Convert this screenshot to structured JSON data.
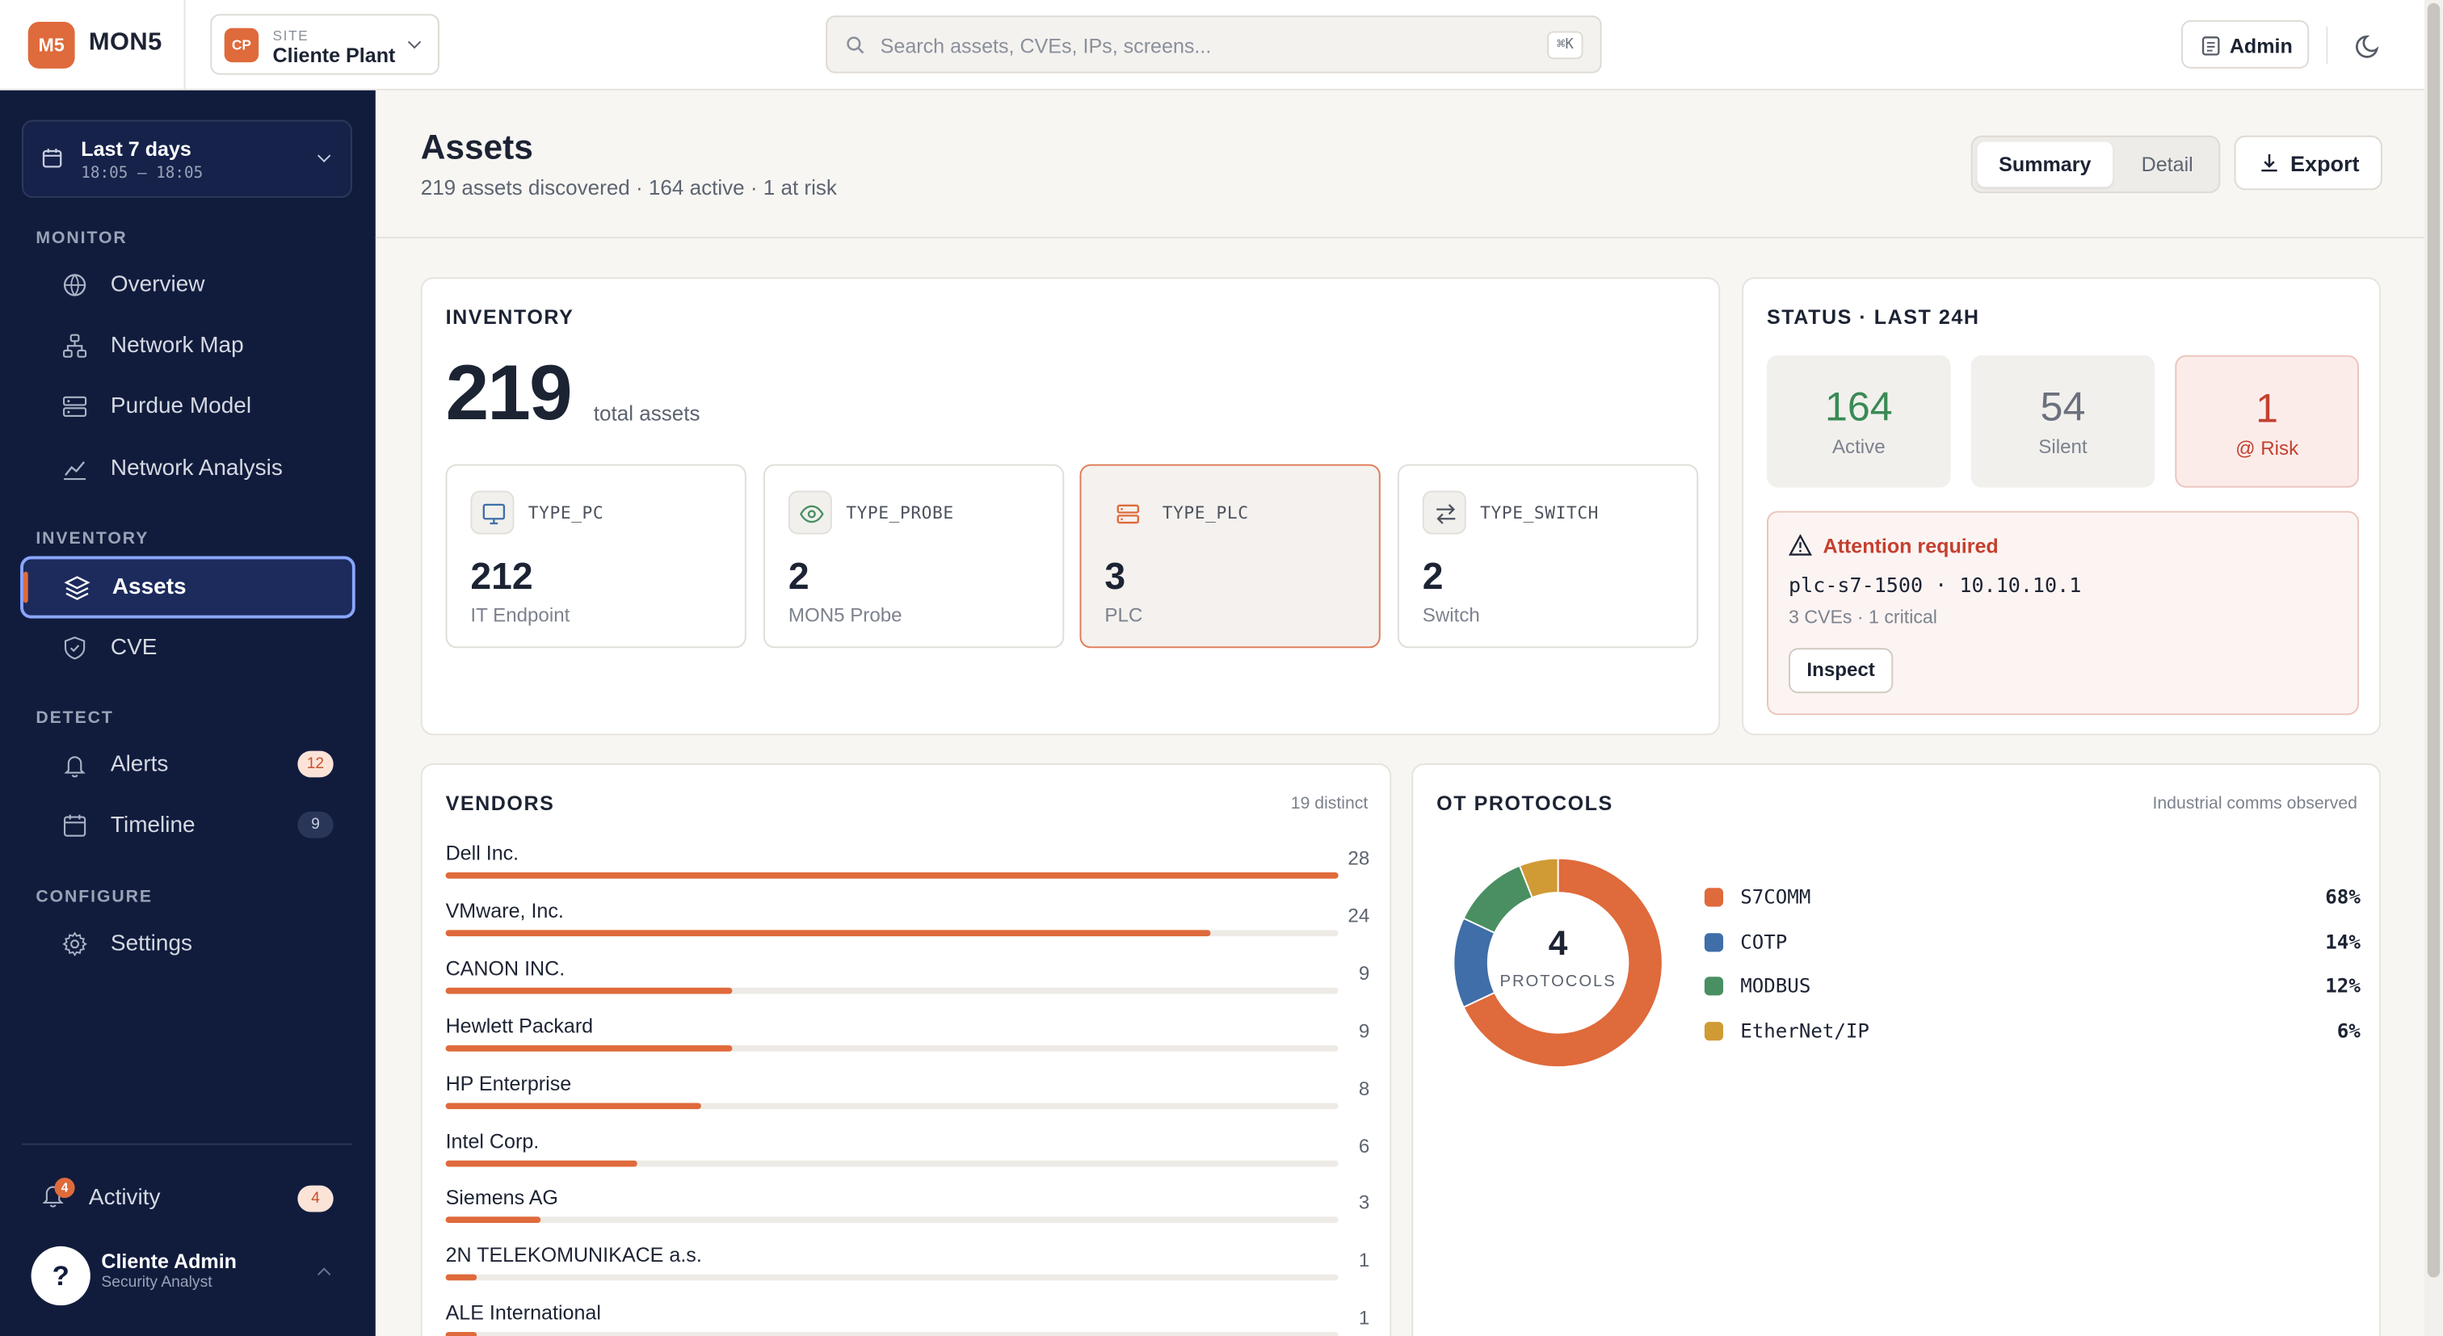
{
  "app": {
    "logo_text": "M5",
    "brand": "MON5"
  },
  "site": {
    "badge": "CP",
    "label": "SITE",
    "name": "Cliente Plant"
  },
  "search": {
    "placeholder": "Search assets, CVEs, IPs, screens...",
    "shortcut": "⌘K"
  },
  "header": {
    "admin_label": "Admin"
  },
  "sidebar": {
    "date_range": {
      "label": "Last 7 days",
      "range": "18:05 – 18:05"
    },
    "groups": [
      {
        "title": "MONITOR",
        "items": [
          {
            "label": "Overview",
            "icon": "globe-icon"
          },
          {
            "label": "Network Map",
            "icon": "network-icon"
          },
          {
            "label": "Purdue Model",
            "icon": "layers-server-icon"
          },
          {
            "label": "Network Analysis",
            "icon": "chart-line-icon"
          }
        ]
      },
      {
        "title": "INVENTORY",
        "items": [
          {
            "label": "Assets",
            "icon": "stack-icon",
            "active": true
          },
          {
            "label": "CVE",
            "icon": "shield-icon"
          }
        ]
      },
      {
        "title": "DETECT",
        "items": [
          {
            "label": "Alerts",
            "icon": "bell-icon",
            "badge": "12"
          },
          {
            "label": "Timeline",
            "icon": "calendar-icon",
            "badge": "9"
          }
        ]
      },
      {
        "title": "CONFIGURE",
        "items": [
          {
            "label": "Settings",
            "icon": "gear-icon"
          }
        ]
      }
    ],
    "activity": {
      "label": "Activity",
      "dot": "4",
      "badge": "4"
    },
    "user": {
      "avatar": "?",
      "name": "Cliente Admin",
      "role": "Security Analyst"
    }
  },
  "page": {
    "title": "Assets",
    "subtitle": "219 assets discovered · 164 active · 1 at risk",
    "view_toggle": {
      "summary": "Summary",
      "detail": "Detail",
      "selected": "Summary"
    },
    "export_label": "Export"
  },
  "inventory": {
    "title": "INVENTORY",
    "total": "219",
    "total_label": "total assets",
    "types": [
      {
        "name": "TYPE_PC",
        "count": "212",
        "desc": "IT Endpoint",
        "icon": "monitor-icon"
      },
      {
        "name": "TYPE_PROBE",
        "count": "2",
        "desc": "MON5 Probe",
        "icon": "eye-icon"
      },
      {
        "name": "TYPE_PLC",
        "count": "3",
        "desc": "PLC",
        "icon": "plc-icon",
        "selected": true
      },
      {
        "name": "TYPE_SWITCH",
        "count": "2",
        "desc": "Switch",
        "icon": "switch-arrows-icon"
      }
    ]
  },
  "status": {
    "title": "STATUS · LAST 24H",
    "active": {
      "value": "164",
      "label": "Active"
    },
    "silent": {
      "value": "54",
      "label": "Silent"
    },
    "risk": {
      "value": "1",
      "label": "@ Risk"
    },
    "attention": {
      "title": "Attention required",
      "host": "plc-s7-1500 · 10.10.10.1",
      "detail": "3 CVEs · 1 critical",
      "button": "Inspect"
    }
  },
  "vendors": {
    "title": "VENDORS",
    "meta": "19 distinct",
    "max": 28,
    "items": [
      {
        "name": "Dell Inc.",
        "count": 28
      },
      {
        "name": "VMware, Inc.",
        "count": 24
      },
      {
        "name": "CANON INC.",
        "count": 9
      },
      {
        "name": "Hewlett Packard",
        "count": 9
      },
      {
        "name": "HP Enterprise",
        "count": 8
      },
      {
        "name": "Intel Corp.",
        "count": 6
      },
      {
        "name": "Siemens AG",
        "count": 3
      },
      {
        "name": "2N TELEKOMUNIKACE a.s.",
        "count": 1
      },
      {
        "name": "ALE International",
        "count": 1
      }
    ]
  },
  "protocols": {
    "title": "OT PROTOCOLS",
    "meta": "Industrial comms observed",
    "center_value": "4",
    "center_label": "PROTOCOLS",
    "items": [
      {
        "name": "S7COMM",
        "pct": "68%",
        "value": 68,
        "color": "#df6a3b"
      },
      {
        "name": "COTP",
        "pct": "14%",
        "value": 14,
        "color": "#3f6ea8"
      },
      {
        "name": "MODBUS",
        "pct": "12%",
        "value": 12,
        "color": "#4a8f62"
      },
      {
        "name": "EtherNet/IP",
        "pct": "6%",
        "value": 6,
        "color": "#d09a35"
      }
    ]
  },
  "colors": {
    "accent": "#df6a3b",
    "sidebar": "#111c3d",
    "active": "#3a8a55",
    "risk": "#c4402f"
  }
}
